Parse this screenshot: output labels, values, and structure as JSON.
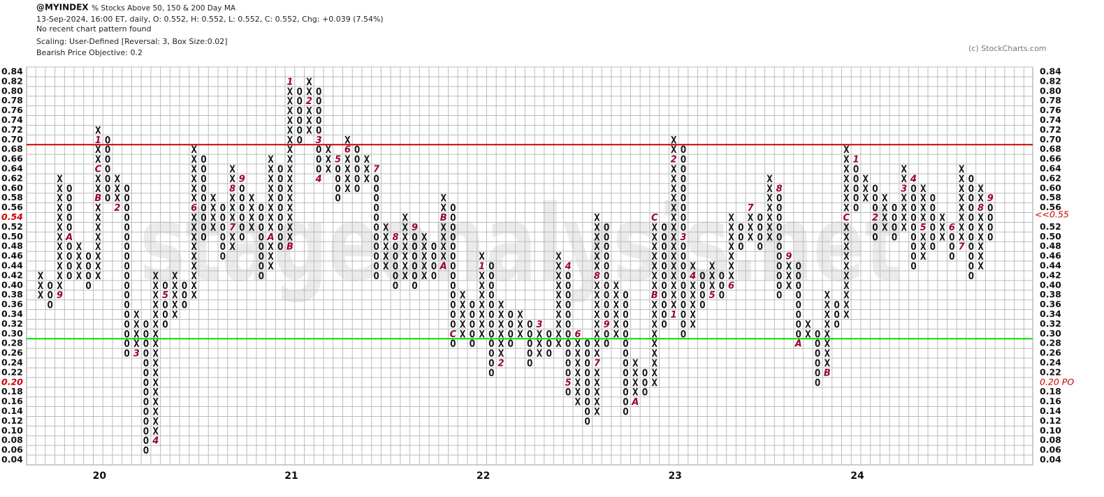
{
  "chart_data": {
    "type": "point_and_figure",
    "symbol": "@MYINDEX",
    "title": "% Stocks Above 50, 150 & 200 Day MA",
    "info": "13-Sep-2024, 16:00 ET, daily, O: 0.552, H: 0.552, L: 0.552, C: 0.552, Chg: +0.039 (7.54%)",
    "pattern_note": "No recent chart pattern found",
    "scaling": "Scaling: User-Defined [Reversal: 3, Box Size:0.02]",
    "objective_note": "Bearish Price Objective: 0.2",
    "copyright": "(c) StockCharts.com",
    "watermark": "stageanalysis.net",
    "box_size": 0.02,
    "ylim": [
      0.03,
      0.85
    ],
    "yticks": [
      0.84,
      0.82,
      {
        "value": 0.8,
        "label": "0.80"
      },
      0.78,
      0.76,
      0.74,
      0.72,
      {
        "value": 0.7,
        "label": "0.70"
      },
      0.68,
      0.66,
      0.64,
      0.62,
      {
        "value": 0.6,
        "label": "0.60"
      },
      0.58,
      0.56,
      0.54,
      0.52,
      {
        "value": 0.5,
        "label": "0.50"
      },
      0.48,
      0.46,
      0.44,
      0.42,
      {
        "value": 0.4,
        "label": "0.40"
      },
      0.38,
      0.36,
      0.34,
      0.32,
      {
        "value": 0.3,
        "label": "0.30"
      },
      0.28,
      0.26,
      0.24,
      0.22,
      {
        "value": 0.2,
        "label": "0.20"
      },
      0.18,
      0.16,
      0.14,
      0.12,
      {
        "value": 0.1,
        "label": "0.10"
      },
      0.08,
      0.06,
      0.04
    ],
    "price_marker": {
      "value": 0.552,
      "label": "<<0.55",
      "color": "#cc0000"
    },
    "objective": {
      "value": 0.2,
      "label": "0.20 PO",
      "color": "#cc0000"
    },
    "hlines": [
      {
        "value": 0.69,
        "color": "#cc0000"
      },
      {
        "value": 0.29,
        "color": "#00dd00"
      }
    ],
    "month_color": "#990033",
    "columns": [
      {
        "type": "X",
        "low": 0.38,
        "high": 0.42
      },
      {
        "type": "O",
        "low": 0.36,
        "high": 0.4
      },
      {
        "type": "X",
        "low": 0.38,
        "high": 0.62,
        "months": [
          {
            "value": 0.38,
            "label": "9"
          }
        ]
      },
      {
        "type": "O",
        "low": 0.42,
        "high": 0.6,
        "months": [
          {
            "value": 0.5,
            "label": "A"
          }
        ]
      },
      {
        "type": "X",
        "low": 0.42,
        "high": 0.48
      },
      {
        "type": "O",
        "low": 0.4,
        "high": 0.46
      },
      {
        "type": "X",
        "low": 0.42,
        "high": 0.72,
        "year": "20",
        "months": [
          {
            "value": 0.58,
            "label": "B"
          },
          {
            "value": 0.64,
            "label": "C"
          },
          {
            "value": 0.7,
            "label": "1"
          }
        ]
      },
      {
        "type": "O",
        "low": 0.58,
        "high": 0.7
      },
      {
        "type": "X",
        "low": 0.56,
        "high": 0.62,
        "months": [
          {
            "value": 0.56,
            "label": "2"
          }
        ]
      },
      {
        "type": "O",
        "low": 0.26,
        "high": 0.6
      },
      {
        "type": "X",
        "low": 0.26,
        "high": 0.34,
        "months": [
          {
            "value": 0.26,
            "label": "3"
          }
        ]
      },
      {
        "type": "O",
        "low": 0.06,
        "high": 0.32
      },
      {
        "type": "X",
        "low": 0.08,
        "high": 0.42,
        "months": [
          {
            "value": 0.08,
            "label": "4"
          }
        ]
      },
      {
        "type": "O",
        "low": 0.32,
        "high": 0.4,
        "months": [
          {
            "value": 0.38,
            "label": "5"
          }
        ]
      },
      {
        "type": "X",
        "low": 0.34,
        "high": 0.42
      },
      {
        "type": "O",
        "low": 0.36,
        "high": 0.4
      },
      {
        "type": "X",
        "low": 0.38,
        "high": 0.68,
        "months": [
          {
            "value": 0.56,
            "label": "6"
          }
        ]
      },
      {
        "type": "O",
        "low": 0.5,
        "high": 0.66
      },
      {
        "type": "X",
        "low": 0.52,
        "high": 0.58
      },
      {
        "type": "O",
        "low": 0.46,
        "high": 0.56
      },
      {
        "type": "X",
        "low": 0.48,
        "high": 0.64,
        "months": [
          {
            "value": 0.52,
            "label": "7"
          },
          {
            "value": 0.6,
            "label": "8"
          }
        ]
      },
      {
        "type": "O",
        "low": 0.5,
        "high": 0.62,
        "months": [
          {
            "value": 0.62,
            "label": "9"
          }
        ]
      },
      {
        "type": "X",
        "low": 0.52,
        "high": 0.58
      },
      {
        "type": "O",
        "low": 0.42,
        "high": 0.56
      },
      {
        "type": "X",
        "low": 0.44,
        "high": 0.66,
        "months": [
          {
            "value": 0.5,
            "label": "A"
          }
        ]
      },
      {
        "type": "O",
        "low": 0.48,
        "high": 0.64
      },
      {
        "type": "X",
        "low": 0.48,
        "high": 0.82,
        "year": "21",
        "months": [
          {
            "value": 0.48,
            "label": "B"
          },
          {
            "value": 0.82,
            "label": "1"
          }
        ]
      },
      {
        "type": "O",
        "low": 0.7,
        "high": 0.8
      },
      {
        "type": "X",
        "low": 0.72,
        "high": 0.82,
        "months": [
          {
            "value": 0.78,
            "label": "2"
          }
        ]
      },
      {
        "type": "O",
        "low": 0.62,
        "high": 0.8,
        "months": [
          {
            "value": 0.7,
            "label": "3"
          },
          {
            "value": 0.62,
            "label": "4"
          }
        ]
      },
      {
        "type": "X",
        "low": 0.64,
        "high": 0.68
      },
      {
        "type": "O",
        "low": 0.58,
        "high": 0.66,
        "months": [
          {
            "value": 0.66,
            "label": "5"
          }
        ]
      },
      {
        "type": "X",
        "low": 0.6,
        "high": 0.7,
        "months": [
          {
            "value": 0.68,
            "label": "6"
          }
        ]
      },
      {
        "type": "O",
        "low": 0.6,
        "high": 0.68
      },
      {
        "type": "X",
        "low": 0.62,
        "high": 0.66
      },
      {
        "type": "O",
        "low": 0.42,
        "high": 0.64,
        "months": [
          {
            "value": 0.64,
            "label": "7"
          }
        ]
      },
      {
        "type": "X",
        "low": 0.44,
        "high": 0.52
      },
      {
        "type": "O",
        "low": 0.4,
        "high": 0.5,
        "months": [
          {
            "value": 0.5,
            "label": "8"
          }
        ]
      },
      {
        "type": "X",
        "low": 0.42,
        "high": 0.54
      },
      {
        "type": "O",
        "low": 0.4,
        "high": 0.52,
        "months": [
          {
            "value": 0.52,
            "label": "9"
          }
        ]
      },
      {
        "type": "X",
        "low": 0.42,
        "high": 0.5
      },
      {
        "type": "O",
        "low": 0.42,
        "high": 0.48
      },
      {
        "type": "X",
        "low": 0.44,
        "high": 0.58,
        "months": [
          {
            "value": 0.44,
            "label": "A"
          },
          {
            "value": 0.54,
            "label": "B"
          }
        ]
      },
      {
        "type": "O",
        "low": 0.28,
        "high": 0.56,
        "months": [
          {
            "value": 0.3,
            "label": "C"
          }
        ]
      },
      {
        "type": "X",
        "low": 0.3,
        "high": 0.38
      },
      {
        "type": "O",
        "low": 0.28,
        "high": 0.36
      },
      {
        "type": "X",
        "low": 0.3,
        "high": 0.46,
        "year": "22",
        "months": [
          {
            "value": 0.44,
            "label": "1"
          }
        ]
      },
      {
        "type": "O",
        "low": 0.22,
        "high": 0.44
      },
      {
        "type": "X",
        "low": 0.24,
        "high": 0.36,
        "months": [
          {
            "value": 0.24,
            "label": "2"
          }
        ]
      },
      {
        "type": "O",
        "low": 0.28,
        "high": 0.34
      },
      {
        "type": "X",
        "low": 0.3,
        "high": 0.34
      },
      {
        "type": "O",
        "low": 0.24,
        "high": 0.32
      },
      {
        "type": "X",
        "low": 0.26,
        "high": 0.32,
        "months": [
          {
            "value": 0.32,
            "label": "3"
          }
        ]
      },
      {
        "type": "O",
        "low": 0.26,
        "high": 0.3
      },
      {
        "type": "X",
        "low": 0.28,
        "high": 0.46
      },
      {
        "type": "O",
        "low": 0.18,
        "high": 0.44,
        "months": [
          {
            "value": 0.44,
            "label": "4"
          },
          {
            "value": 0.2,
            "label": "5"
          }
        ]
      },
      {
        "type": "X",
        "low": 0.16,
        "high": 0.3,
        "months": [
          {
            "value": 0.3,
            "label": "6"
          }
        ]
      },
      {
        "type": "O",
        "low": 0.12,
        "high": 0.28
      },
      {
        "type": "X",
        "low": 0.14,
        "high": 0.54,
        "months": [
          {
            "value": 0.24,
            "label": "7"
          },
          {
            "value": 0.42,
            "label": "8"
          }
        ]
      },
      {
        "type": "O",
        "low": 0.28,
        "high": 0.52,
        "months": [
          {
            "value": 0.32,
            "label": "9"
          }
        ]
      },
      {
        "type": "X",
        "low": 0.3,
        "high": 0.4
      },
      {
        "type": "O",
        "low": 0.14,
        "high": 0.38
      },
      {
        "type": "X",
        "low": 0.16,
        "high": 0.24,
        "months": [
          {
            "value": 0.16,
            "label": "A"
          }
        ]
      },
      {
        "type": "O",
        "low": 0.18,
        "high": 0.22
      },
      {
        "type": "X",
        "low": 0.2,
        "high": 0.54,
        "months": [
          {
            "value": 0.38,
            "label": "B"
          },
          {
            "value": 0.54,
            "label": "C"
          }
        ]
      },
      {
        "type": "O",
        "low": 0.32,
        "high": 0.52
      },
      {
        "type": "X",
        "low": 0.34,
        "high": 0.7,
        "year": "23",
        "months": [
          {
            "value": 0.34,
            "label": "1"
          },
          {
            "value": 0.66,
            "label": "2"
          }
        ]
      },
      {
        "type": "O",
        "low": 0.3,
        "high": 0.68,
        "months": [
          {
            "value": 0.5,
            "label": "3"
          }
        ]
      },
      {
        "type": "X",
        "low": 0.32,
        "high": 0.44,
        "months": [
          {
            "value": 0.42,
            "label": "4"
          }
        ]
      },
      {
        "type": "O",
        "low": 0.36,
        "high": 0.42
      },
      {
        "type": "X",
        "low": 0.38,
        "high": 0.44,
        "months": [
          {
            "value": 0.38,
            "label": "5"
          }
        ]
      },
      {
        "type": "O",
        "low": 0.38,
        "high": 0.42
      },
      {
        "type": "X",
        "low": 0.4,
        "high": 0.54,
        "months": [
          {
            "value": 0.4,
            "label": "6"
          }
        ]
      },
      {
        "type": "O",
        "low": 0.48,
        "high": 0.52
      },
      {
        "type": "X",
        "low": 0.5,
        "high": 0.56,
        "months": [
          {
            "value": 0.56,
            "label": "7"
          }
        ]
      },
      {
        "type": "O",
        "low": 0.48,
        "high": 0.54
      },
      {
        "type": "X",
        "low": 0.5,
        "high": 0.62
      },
      {
        "type": "O",
        "low": 0.38,
        "high": 0.6,
        "months": [
          {
            "value": 0.6,
            "label": "8"
          }
        ]
      },
      {
        "type": "X",
        "low": 0.4,
        "high": 0.46,
        "months": [
          {
            "value": 0.46,
            "label": "9"
          }
        ]
      },
      {
        "type": "O",
        "low": 0.28,
        "high": 0.44,
        "months": [
          {
            "value": 0.28,
            "label": "A"
          }
        ]
      },
      {
        "type": "X",
        "low": 0.3,
        "high": 0.32
      },
      {
        "type": "O",
        "low": 0.2,
        "high": 0.3
      },
      {
        "type": "X",
        "low": 0.22,
        "high": 0.38,
        "months": [
          {
            "value": 0.22,
            "label": "B"
          }
        ]
      },
      {
        "type": "O",
        "low": 0.32,
        "high": 0.36
      },
      {
        "type": "X",
        "low": 0.34,
        "high": 0.68,
        "months": [
          {
            "value": 0.54,
            "label": "C"
          }
        ]
      },
      {
        "type": "O",
        "low": 0.56,
        "high": 0.66,
        "year": "24",
        "months": [
          {
            "value": 0.66,
            "label": "1"
          }
        ]
      },
      {
        "type": "X",
        "low": 0.58,
        "high": 0.62
      },
      {
        "type": "O",
        "low": 0.5,
        "high": 0.6,
        "months": [
          {
            "value": 0.54,
            "label": "2"
          }
        ]
      },
      {
        "type": "X",
        "low": 0.52,
        "high": 0.58
      },
      {
        "type": "O",
        "low": 0.5,
        "high": 0.56
      },
      {
        "type": "X",
        "low": 0.52,
        "high": 0.64,
        "months": [
          {
            "value": 0.6,
            "label": "3"
          }
        ]
      },
      {
        "type": "O",
        "low": 0.44,
        "high": 0.62,
        "months": [
          {
            "value": 0.62,
            "label": "4"
          }
        ]
      },
      {
        "type": "X",
        "low": 0.46,
        "high": 0.6,
        "months": [
          {
            "value": 0.52,
            "label": "5"
          }
        ]
      },
      {
        "type": "O",
        "low": 0.48,
        "high": 0.58
      },
      {
        "type": "X",
        "low": 0.5,
        "high": 0.54
      },
      {
        "type": "O",
        "low": 0.46,
        "high": 0.52,
        "months": [
          {
            "value": 0.52,
            "label": "6"
          }
        ]
      },
      {
        "type": "X",
        "low": 0.48,
        "high": 0.64,
        "months": [
          {
            "value": 0.48,
            "label": "7"
          }
        ]
      },
      {
        "type": "O",
        "low": 0.42,
        "high": 0.62
      },
      {
        "type": "X",
        "low": 0.44,
        "high": 0.6,
        "months": [
          {
            "value": 0.56,
            "label": "8"
          }
        ]
      },
      {
        "type": "O",
        "low": 0.5,
        "high": 0.58,
        "months": [
          {
            "value": 0.58,
            "label": "9"
          }
        ]
      }
    ]
  }
}
